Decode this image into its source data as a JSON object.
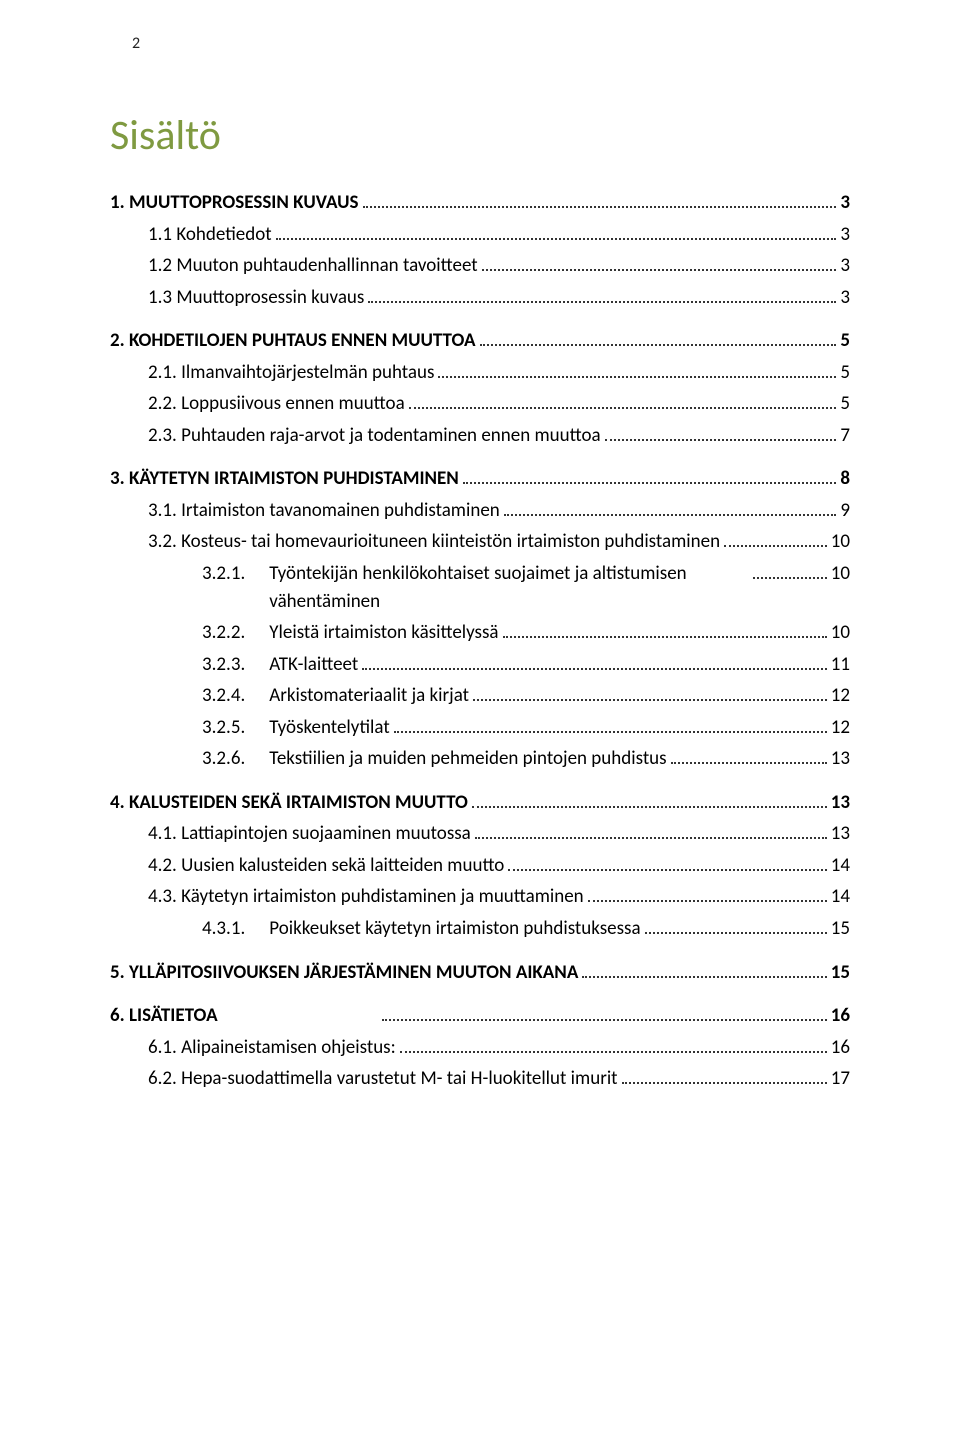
{
  "page_number": "2",
  "title": "Sisältö",
  "title_color": "#7f9a41",
  "text_color": "#000000",
  "background_color": "#ffffff",
  "font_family": "Calibri",
  "title_fontsize": 42,
  "body_fontsize": 19,
  "toc": [
    {
      "level": 1,
      "label": "1. MUUTTOPROSESSIN KUVAUS",
      "page": "3"
    },
    {
      "level": 2,
      "label": "1.1   Kohdetiedot",
      "page": "3"
    },
    {
      "level": 2,
      "label": "1.2   Muuton puhtaudenhallinnan tavoitteet",
      "page": "3"
    },
    {
      "level": 2,
      "label": "1.3   Muuttoprosessin kuvaus",
      "page": "3"
    },
    {
      "level": 1,
      "label": "2. KOHDETILOJEN PUHTAUS ENNEN MUUTTOA",
      "page": "5",
      "gap": true
    },
    {
      "level": 2,
      "label": "2.1.  Ilmanvaihtojärjestelmän puhtaus",
      "page": "5"
    },
    {
      "level": 2,
      "label": "2.2.  Loppusiivous ennen muuttoa",
      "page": "5"
    },
    {
      "level": 2,
      "label": "2.3.  Puhtauden raja-arvot ja todentaminen ennen muuttoa",
      "page": "7"
    },
    {
      "level": 1,
      "label": "3. KÄYTETYN IRTAIMISTON PUHDISTAMINEN",
      "page": "8",
      "gap": true
    },
    {
      "level": 2,
      "label": "3.1.  Irtaimiston tavanomainen puhdistaminen",
      "page": "9"
    },
    {
      "level": 2,
      "label": "3.2.  Kosteus- tai homevaurioituneen kiinteistön irtaimiston puhdistaminen",
      "page": "10"
    },
    {
      "level": 3,
      "num": "3.2.1.",
      "text": "Työntekijän henkilökohtaiset suojaimet ja altistumisen vähentäminen",
      "page": "10"
    },
    {
      "level": 3,
      "num": "3.2.2.",
      "text": "Yleistä irtaimiston käsittelyssä",
      "page": "10"
    },
    {
      "level": 3,
      "num": "3.2.3.",
      "text": "ATK-laitteet",
      "page": "11"
    },
    {
      "level": 3,
      "num": "3.2.4.",
      "text": "Arkistomateriaalit ja kirjat",
      "page": "12"
    },
    {
      "level": 3,
      "num": "3.2.5.",
      "text": "Työskentelytilat",
      "page": "12"
    },
    {
      "level": 3,
      "num": "3.2.6.",
      "text": "Tekstiilien ja muiden pehmeiden pintojen puhdistus",
      "page": "13"
    },
    {
      "level": 1,
      "label": "4. KALUSTEIDEN SEKÄ IRTAIMISTON MUUTTO",
      "page": "13",
      "gap": true
    },
    {
      "level": 2,
      "label": "4.1.  Lattiapintojen suojaaminen muutossa",
      "page": "13"
    },
    {
      "level": 2,
      "label": "4.2.  Uusien kalusteiden sekä laitteiden muutto",
      "page": "14"
    },
    {
      "level": 2,
      "label": "4.3.  Käytetyn irtaimiston puhdistaminen ja muuttaminen",
      "page": "14"
    },
    {
      "level": 3,
      "num": "4.3.1.",
      "text": "Poikkeukset käytetyn irtaimiston puhdistuksessa",
      "page": "15"
    },
    {
      "level": 1,
      "label": "5. YLLÄPITOSIIVOUKSEN JÄRJESTÄMINEN MUUTON AIKANA",
      "page": "15",
      "gap": true
    },
    {
      "level": 1,
      "label": "6. LISÄTIETOA",
      "page": "16",
      "gap": true,
      "wide_gap_after_label": true
    },
    {
      "level": 2,
      "label": "6.1.  Alipaineistamisen ohjeistus:",
      "page": "16"
    },
    {
      "level": 2,
      "label": "6.2.  Hepa-suodattimella varustetut M- tai H-luokitellut imurit",
      "page": "17"
    }
  ]
}
